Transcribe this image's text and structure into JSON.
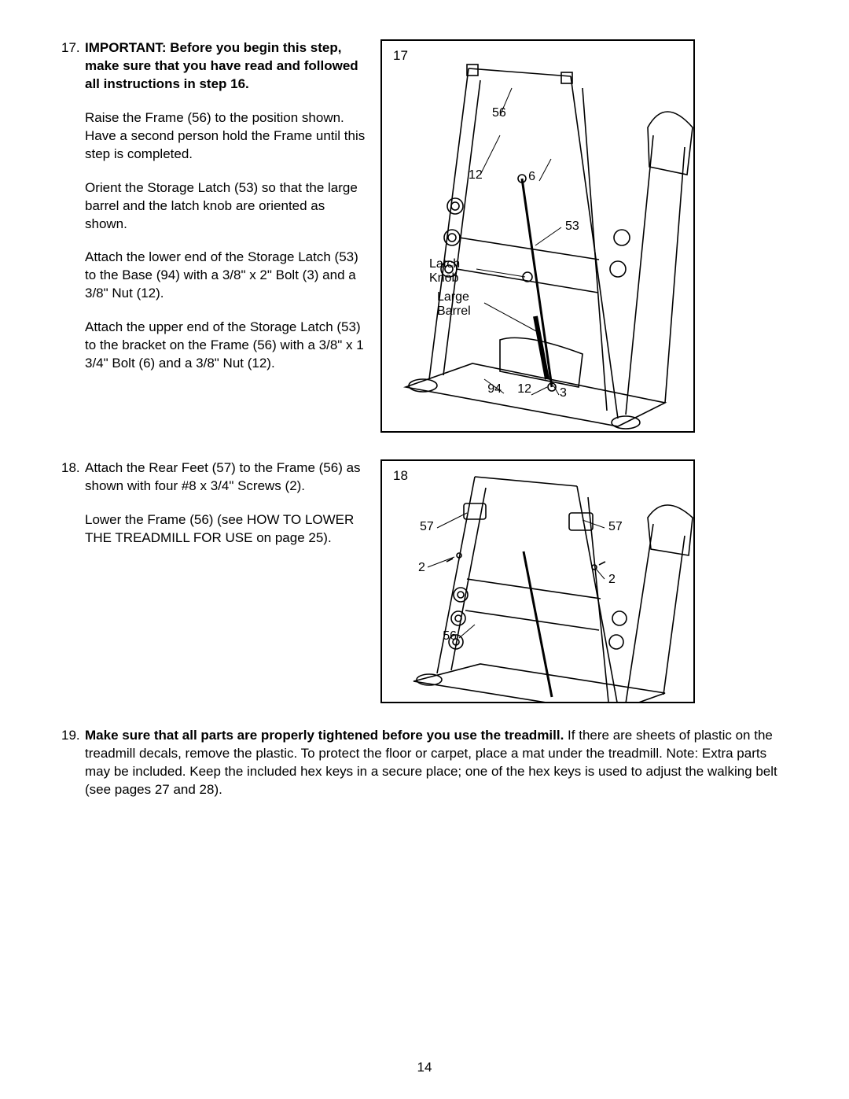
{
  "page_number": "14",
  "steps": [
    {
      "num": "17.",
      "paragraphs": [
        {
          "text": "IMPORTANT: Before you begin this step, make sure that you have read and followed all instructions in step 16.",
          "bold": true
        },
        {
          "text": "Raise the Frame (56) to the position shown. Have a second person hold the Frame until this step is completed."
        },
        {
          "text": "Orient the Storage Latch (53) so that the large barrel and the latch knob are oriented as shown."
        },
        {
          "text": "Attach the lower end of the Storage Latch (53) to the Base (94) with a 3/8\" x 2\" Bolt (3) and a 3/8\" Nut (12)."
        },
        {
          "text": "Attach the upper end of the Storage Latch (53) to the bracket on the Frame (56) with a 3/8\" x 1 3/4\" Bolt (6) and a 3/8\" Nut (12)."
        }
      ],
      "figure": {
        "num": "17",
        "labels": {
          "56": "56",
          "12a": "12",
          "6": "6",
          "53": "53",
          "latch_knob_a": "Latch",
          "latch_knob_b": "Knob",
          "large_barrel_a": "Large",
          "large_barrel_b": "Barrel",
          "94": "94",
          "12b": "12",
          "3": "3"
        }
      }
    },
    {
      "num": "18.",
      "paragraphs": [
        {
          "text": "Attach the Rear Feet (57) to the Frame (56) as shown with four #8 x 3/4\" Screws (2)."
        },
        {
          "text": "Lower the Frame (56) (see HOW TO LOWER THE TREADMILL FOR USE on page 25)."
        }
      ],
      "figure": {
        "num": "18",
        "labels": {
          "57a": "57",
          "57b": "57",
          "2a": "2",
          "2b": "2",
          "56": "56"
        }
      }
    },
    {
      "num": "19.",
      "paragraphs": [
        {
          "html": "<span class=\"bold\">Make sure that all parts are properly tightened before you use the treadmill.</span> If there are sheets of plastic on the treadmill decals, remove the plastic. To protect the floor or carpet, place a mat under the treadmill. Note: Extra parts may be included. Keep the included hex keys in a secure place; one of the hex keys is used to adjust the walking belt (see pages 27 and 28)."
        }
      ]
    }
  ]
}
